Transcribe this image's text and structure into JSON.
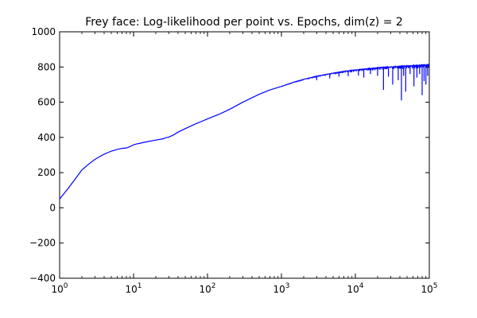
{
  "chart_data": {
    "type": "line",
    "title": "Frey face: Log-likelihood per point vs. Epochs, dim(z) = 2",
    "xlabel": "",
    "ylabel": "",
    "xscale": "log",
    "xlim": [
      1,
      100000
    ],
    "ylim": [
      -400,
      1000
    ],
    "grid": false,
    "x_ticks": [
      {
        "value": 1,
        "base": "10",
        "exp": "0"
      },
      {
        "value": 10,
        "base": "10",
        "exp": "1"
      },
      {
        "value": 100,
        "base": "10",
        "exp": "2"
      },
      {
        "value": 1000,
        "base": "10",
        "exp": "3"
      },
      {
        "value": 10000,
        "base": "10",
        "exp": "4"
      },
      {
        "value": 100000,
        "base": "10",
        "exp": "5"
      }
    ],
    "y_ticks": [
      {
        "value": 1000,
        "label": "1000"
      },
      {
        "value": 800,
        "label": "800"
      },
      {
        "value": 600,
        "label": "600"
      },
      {
        "value": 400,
        "label": "400"
      },
      {
        "value": 200,
        "label": "200"
      },
      {
        "value": 0,
        "label": "0"
      },
      {
        "value": -200,
        "label": "−200"
      },
      {
        "value": -400,
        "label": "−400"
      }
    ],
    "series": [
      {
        "color": "#0000ff",
        "x": [
          1,
          1.3,
          1.6,
          2,
          2.5,
          3,
          4,
          5,
          6,
          7,
          8,
          9,
          10,
          11,
          12,
          15,
          20,
          25,
          27,
          30,
          35,
          40,
          50,
          70,
          100,
          150,
          200,
          300,
          500,
          700,
          1000,
          1500,
          2000,
          3000,
          5000,
          7000,
          10000,
          15000,
          20000,
          30000,
          50000,
          70000,
          100000
        ],
        "y": [
          50,
          110,
          160,
          215,
          250,
          275,
          305,
          322,
          332,
          338,
          340,
          348,
          358,
          363,
          366,
          375,
          385,
          392,
          398,
          402,
          415,
          430,
          450,
          478,
          505,
          535,
          560,
          600,
          645,
          670,
          690,
          715,
          730,
          748,
          765,
          775,
          783,
          790,
          795,
          800,
          805,
          808,
          810
        ]
      }
    ],
    "spikes": [
      {
        "x": 3000,
        "y": 725
      },
      {
        "x": 4500,
        "y": 735
      },
      {
        "x": 6000,
        "y": 745
      },
      {
        "x": 8000,
        "y": 748
      },
      {
        "x": 11000,
        "y": 752
      },
      {
        "x": 13000,
        "y": 740
      },
      {
        "x": 16000,
        "y": 760
      },
      {
        "x": 20000,
        "y": 750
      },
      {
        "x": 24000,
        "y": 670
      },
      {
        "x": 28000,
        "y": 745
      },
      {
        "x": 32000,
        "y": 700
      },
      {
        "x": 38000,
        "y": 725
      },
      {
        "x": 42000,
        "y": 610
      },
      {
        "x": 45000,
        "y": 750
      },
      {
        "x": 48000,
        "y": 660
      },
      {
        "x": 55000,
        "y": 760
      },
      {
        "x": 62000,
        "y": 690
      },
      {
        "x": 68000,
        "y": 740
      },
      {
        "x": 74000,
        "y": 760
      },
      {
        "x": 80000,
        "y": 640
      },
      {
        "x": 85000,
        "y": 720
      },
      {
        "x": 90000,
        "y": 700
      },
      {
        "x": 95000,
        "y": 750
      }
    ]
  }
}
